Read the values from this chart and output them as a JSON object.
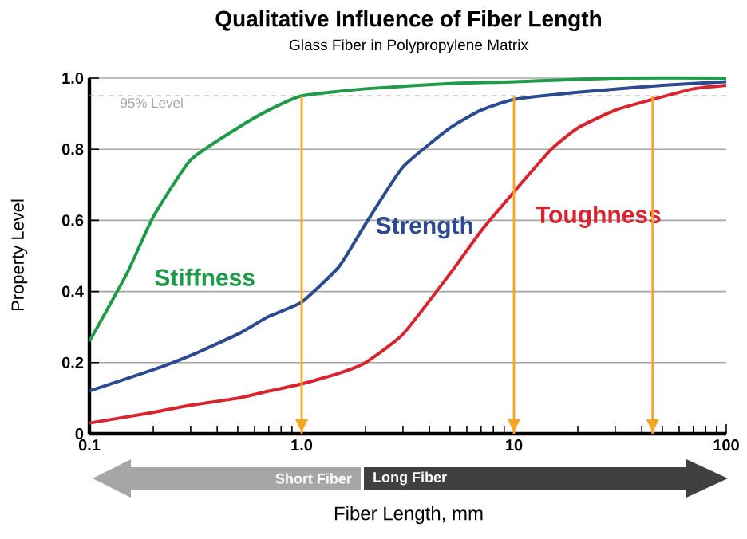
{
  "chart_data": {
    "type": "line",
    "title": "Qualitative Influence of Fiber Length",
    "subtitle": "Glass Fiber in Polypropylene Matrix",
    "xlabel": "Fiber Length, mm",
    "ylabel": "Property Level",
    "log": "x",
    "grid": "y",
    "legend": false,
    "xlim": [
      0.1,
      100
    ],
    "ylim": [
      0,
      1.0
    ],
    "xticks": [
      0.1,
      {
        "value": 1,
        "label": "1.0"
      },
      10,
      100
    ],
    "yticks": [
      {
        "value": 0,
        "label": "0"
      },
      0.2,
      0.4,
      0.6,
      0.8,
      {
        "value": 1.0,
        "label": "1.0"
      }
    ],
    "series": [
      {
        "name": "Stiffness",
        "color": "#1e9a48",
        "x": [
          0.1,
          0.15,
          0.2,
          0.3,
          0.5,
          0.7,
          1,
          2,
          5,
          10,
          30,
          100
        ],
        "values": [
          0.26,
          0.45,
          0.61,
          0.77,
          0.86,
          0.91,
          0.95,
          0.97,
          0.985,
          0.99,
          1.0,
          1.0
        ]
      },
      {
        "name": "Strength",
        "color": "#2b4a8f",
        "x": [
          0.1,
          0.2,
          0.3,
          0.5,
          0.7,
          1,
          1.5,
          2,
          3,
          5,
          7,
          10,
          20,
          50,
          100
        ],
        "values": [
          0.12,
          0.18,
          0.22,
          0.28,
          0.33,
          0.37,
          0.47,
          0.59,
          0.75,
          0.86,
          0.91,
          0.94,
          0.96,
          0.98,
          0.99
        ]
      },
      {
        "name": "Toughness",
        "color": "#d9232e",
        "x": [
          0.1,
          0.2,
          0.3,
          0.5,
          0.7,
          1,
          1.5,
          2,
          3,
          5,
          7,
          10,
          15,
          20,
          30,
          45,
          70,
          100
        ],
        "values": [
          0.03,
          0.06,
          0.08,
          0.1,
          0.12,
          0.14,
          0.17,
          0.2,
          0.28,
          0.45,
          0.57,
          0.68,
          0.8,
          0.86,
          0.91,
          0.94,
          0.97,
          0.98
        ]
      }
    ],
    "ref_lines": [
      {
        "axis": "y",
        "value": 0.95,
        "label": "95% Level",
        "color": "#a8a8a8",
        "line_style": "dashed"
      },
      {
        "axis": "x",
        "value": 1,
        "color": "#f5a623"
      },
      {
        "axis": "x",
        "value": 10,
        "color": "#f5a623"
      },
      {
        "axis": "x",
        "value": 45,
        "color": "#f5a623"
      }
    ],
    "annotations": [
      "Short Fiber",
      "Long Fiber"
    ]
  }
}
